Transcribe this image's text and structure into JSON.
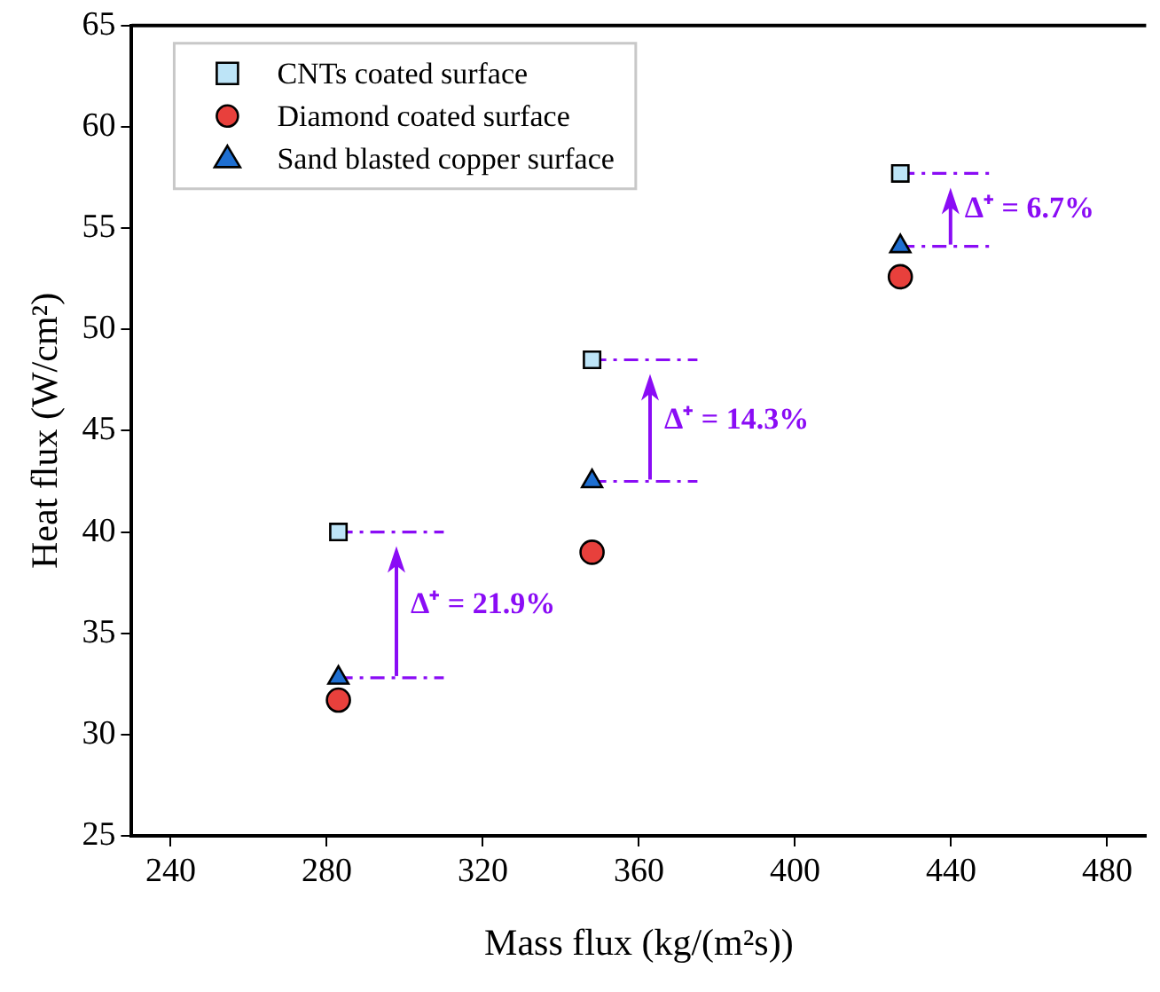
{
  "chart_data": {
    "type": "scatter",
    "xlabel": "Mass flux (kg/(m²s))",
    "ylabel": "Heat flux (W/cm²)",
    "x": [
      283,
      348,
      427
    ],
    "series": [
      {
        "name": "CNTs coated surface",
        "color": "#bde4f7",
        "marker": "square",
        "values": [
          40.0,
          48.5,
          57.7
        ]
      },
      {
        "name": "Diamond coated surface",
        "color": "#e8403c",
        "marker": "circle",
        "values": [
          31.7,
          39.0,
          52.6
        ]
      },
      {
        "name": "Sand blasted copper surface",
        "color": "#1f6fd1",
        "marker": "triangle",
        "values": [
          32.8,
          42.5,
          54.1
        ]
      },
      {
        "type": "line",
        "color": "#8a0cf5",
        "line_style": "dashed",
        "marker": "none",
        "x": [
          283,
          310
        ],
        "values": [
          40.0,
          40.0
        ]
      },
      {
        "type": "line",
        "color": "#8a0cf5",
        "line_style": "dashed",
        "marker": "none",
        "x": [
          283,
          310
        ],
        "values": [
          32.8,
          32.8
        ]
      },
      {
        "type": "line",
        "color": "#8a0cf5",
        "line_style": "dashed",
        "marker": "none",
        "x": [
          348,
          375
        ],
        "values": [
          48.5,
          48.5
        ]
      },
      {
        "type": "line",
        "color": "#8a0cf5",
        "line_style": "dashed",
        "marker": "none",
        "x": [
          348,
          375
        ],
        "values": [
          42.5,
          42.5
        ]
      },
      {
        "type": "line",
        "color": "#8a0cf5",
        "line_style": "dashed",
        "marker": "none",
        "x": [
          427,
          450
        ],
        "values": [
          57.7,
          57.7
        ]
      },
      {
        "type": "line",
        "color": "#8a0cf5",
        "line_style": "dashed",
        "marker": "none",
        "x": [
          427,
          450
        ],
        "values": [
          54.1,
          54.1
        ]
      }
    ],
    "annotations": [
      "Δ⁺ = 21.9%",
      "Δ⁺ = 14.3%",
      "Δ⁺ = 6.7%"
    ],
    "xlim": [
      230,
      490
    ],
    "xticks": [
      240,
      280,
      320,
      360,
      400,
      440,
      480
    ],
    "ylim": [
      25,
      65
    ],
    "yticks": [
      25,
      30,
      35,
      40,
      45,
      50,
      55,
      60,
      65
    ],
    "grid": false,
    "legend": "top left"
  }
}
